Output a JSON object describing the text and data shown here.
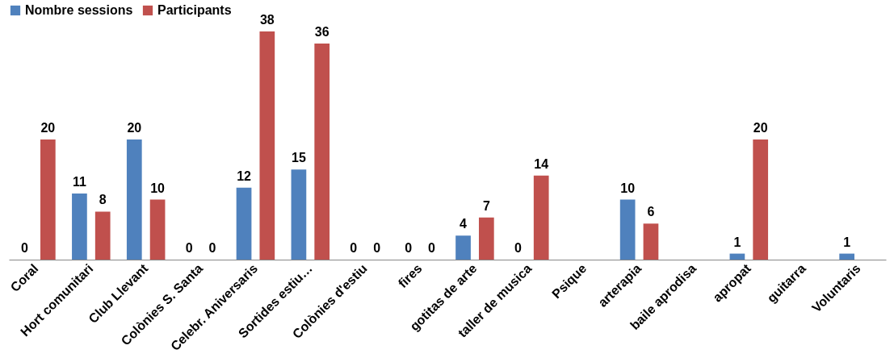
{
  "chart_data": {
    "type": "bar",
    "categories": [
      "Coral",
      "Hort comunitari",
      "Club Llevant",
      "Colònies S. Santa",
      "Celebr. Aniversaris",
      "Sortides estiu…",
      "Colònies d'estiu",
      "fires",
      "gotitas de arte",
      "taller de musica",
      "Psique",
      "arterapia",
      "baile aprodisa",
      "apropat",
      "guitarra",
      "Voluntaris"
    ],
    "series": [
      {
        "name": "Nombre sessions",
        "color": "#4f81bd",
        "values": [
          0,
          11,
          20,
          0,
          12,
          15,
          0,
          0,
          4,
          0,
          null,
          10,
          null,
          1,
          null,
          1
        ]
      },
      {
        "name": "Participants",
        "color": "#c0504d",
        "values": [
          20,
          8,
          10,
          0,
          38,
          36,
          0,
          0,
          7,
          14,
          null,
          6,
          null,
          20,
          null,
          null
        ]
      }
    ],
    "data_labels": true,
    "legend": "top",
    "grid": false
  }
}
